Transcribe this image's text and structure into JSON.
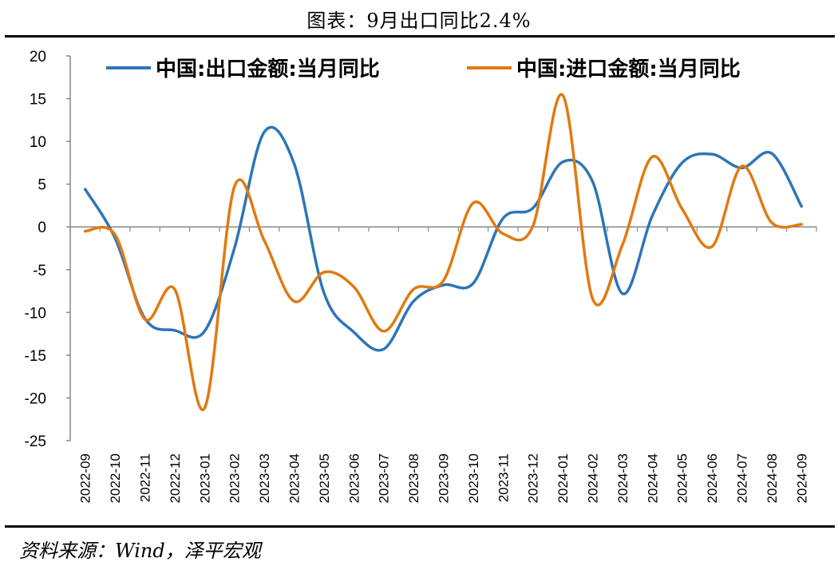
{
  "figure": {
    "title": "图表：9月出口同比2.4%",
    "source": "资料来源：Wind，泽平宏观"
  },
  "chart_data": {
    "type": "line",
    "categories": [
      "2022-09",
      "2022-10",
      "2022-11",
      "2022-12",
      "2023-01",
      "2023-02",
      "2023-03",
      "2023-04",
      "2023-05",
      "2023-06",
      "2023-07",
      "2023-08",
      "2023-09",
      "2023-10",
      "2023-11",
      "2023-12",
      "2024-01",
      "2024-02",
      "2024-03",
      "2024-04",
      "2024-05",
      "2024-06",
      "2024-07",
      "2024-08",
      "2024-09"
    ],
    "ylim": [
      -25,
      20
    ],
    "yticks": [
      "20",
      "15",
      "10",
      "5",
      "0",
      "-5",
      "-10",
      "-15",
      "-20",
      "-25"
    ],
    "legend_position": "top",
    "grid": false,
    "series": [
      {
        "name": "中国:出口金额:当月同比",
        "color": "#2e75b6",
        "values": [
          4.4,
          -1.3,
          -10.7,
          -12.1,
          -12.2,
          -2.5,
          11.1,
          7.4,
          -7.7,
          -12.3,
          -14.3,
          -8.7,
          -6.8,
          -6.6,
          1.0,
          2.2,
          7.6,
          5.3,
          -7.8,
          1.3,
          7.5,
          8.5,
          6.9,
          8.6,
          2.4
        ]
      },
      {
        "name": "中国:进口金额:当月同比",
        "color": "#e07a10",
        "values": [
          -0.5,
          -0.9,
          -10.8,
          -7.3,
          -21.2,
          4.7,
          -1.6,
          -8.7,
          -5.3,
          -7.0,
          -12.2,
          -7.3,
          -6.3,
          2.8,
          -0.8,
          0.1,
          15.4,
          -8.4,
          -2.1,
          8.2,
          2.1,
          -2.3,
          7.1,
          0.5,
          0.3
        ]
      }
    ]
  }
}
